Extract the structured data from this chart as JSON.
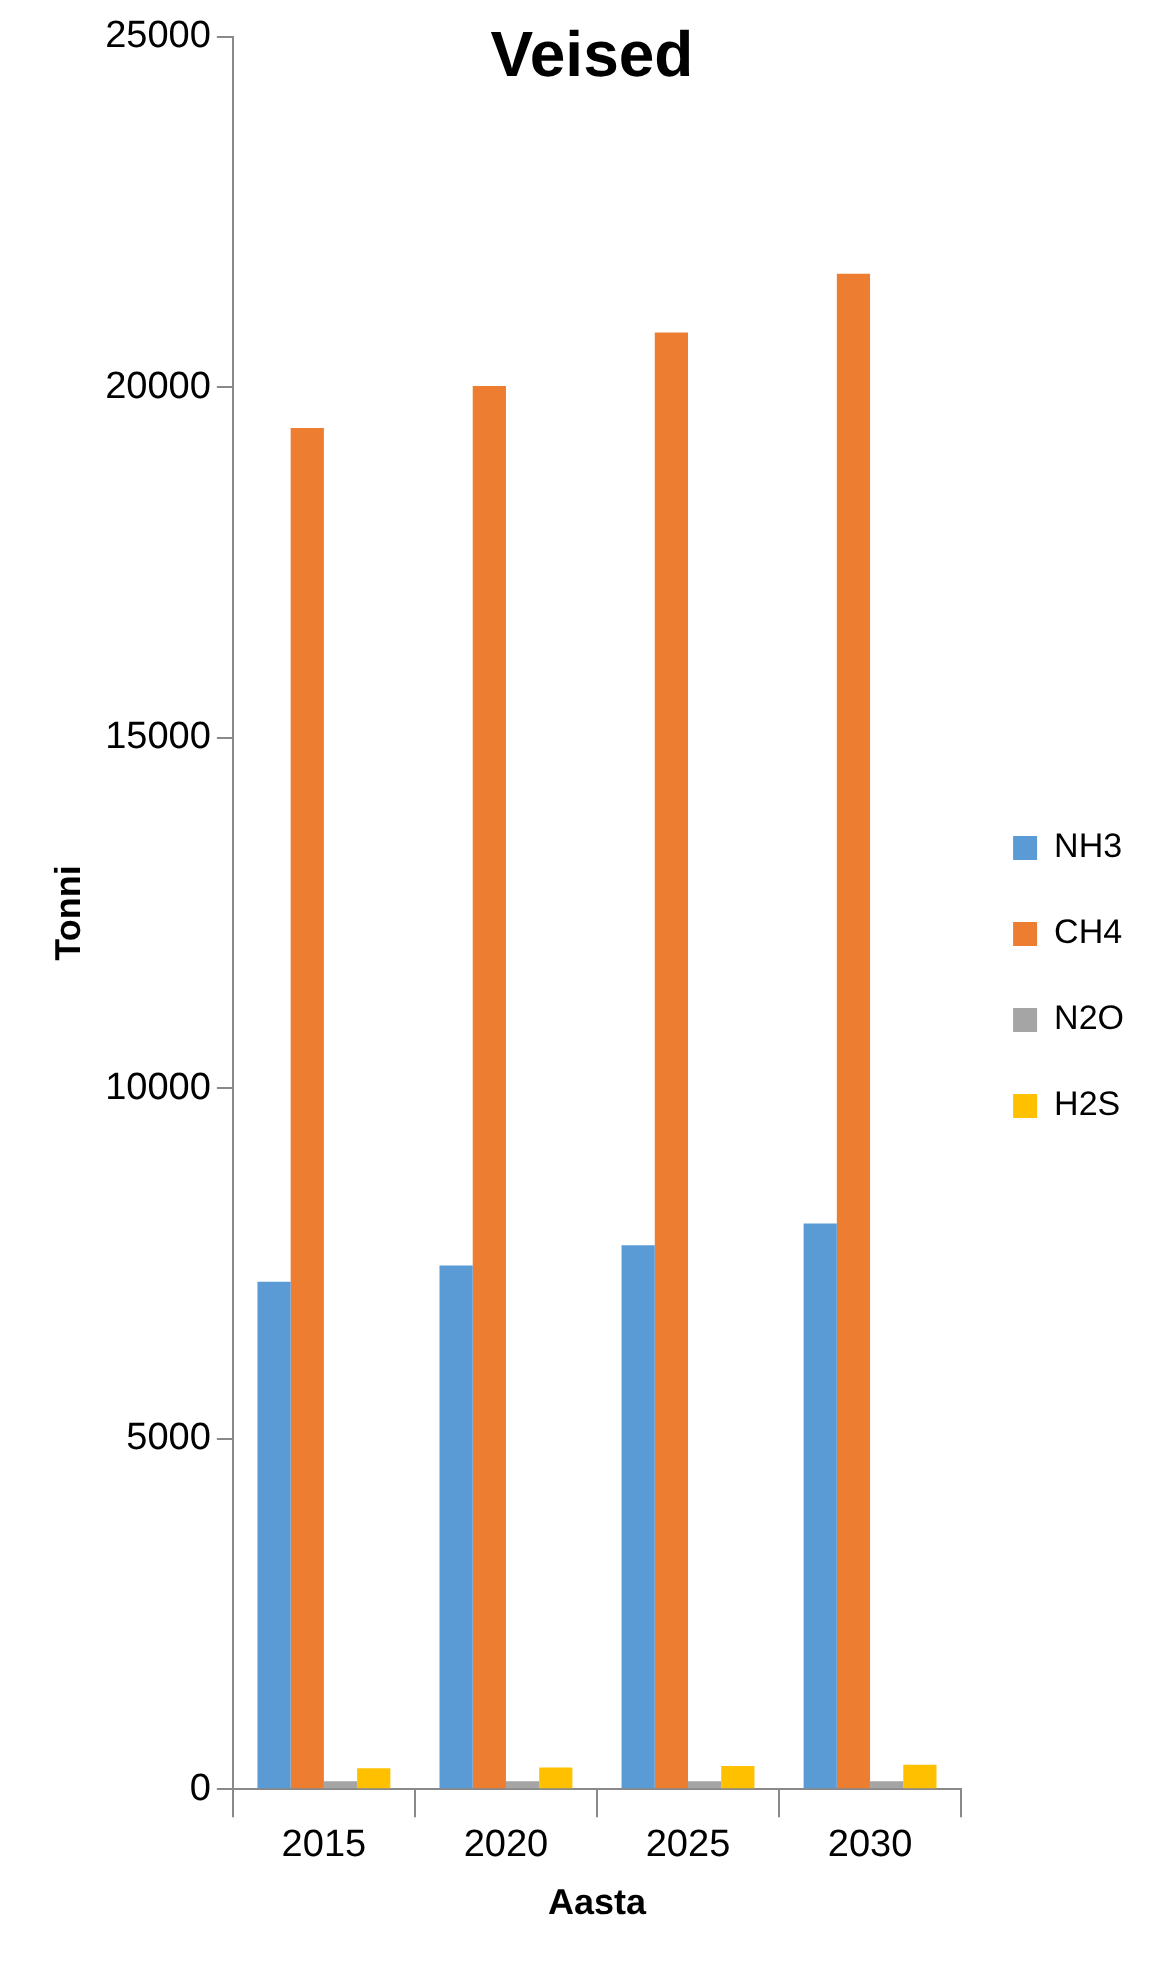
{
  "chart_data": {
    "type": "bar",
    "title": "Veised",
    "xlabel": "Aasta",
    "ylabel": "Tonni",
    "categories": [
      "2015",
      "2020",
      "2025",
      "2030"
    ],
    "series": [
      {
        "name": "NH3",
        "color": "#5b9bd5",
        "values": [
          7240,
          7470,
          7760,
          8070
        ]
      },
      {
        "name": "CH4",
        "color": "#ed7d31",
        "values": [
          19420,
          20020,
          20780,
          21620
        ]
      },
      {
        "name": "N2O",
        "color": "#a5a5a5",
        "values": [
          115,
          115,
          115,
          115
        ]
      },
      {
        "name": "H2S",
        "color": "#ffc000",
        "values": [
          300,
          310,
          330,
          350
        ]
      }
    ],
    "ylim": [
      0,
      25000
    ],
    "yticks": [
      0,
      5000,
      10000,
      15000,
      20000,
      25000
    ],
    "grid": false,
    "legend": "right"
  }
}
